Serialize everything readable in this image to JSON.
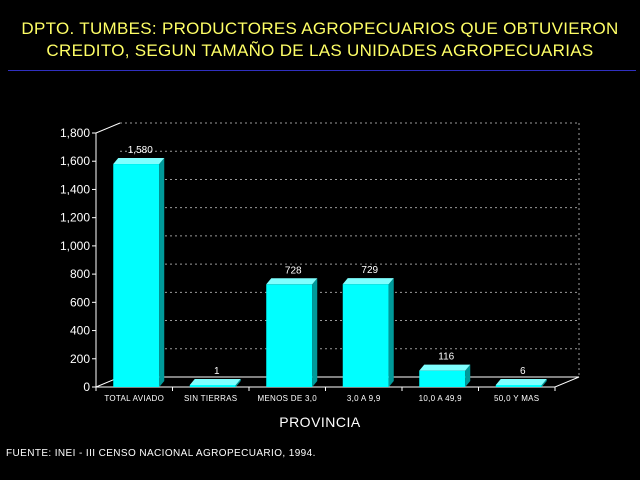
{
  "title_line1": "DPTO. TUMBES: PRODUCTORES AGROPECUARIOS QUE OBTUVIERON",
  "title_line2": "CREDITO, SEGUN TAMAÑO DE LAS UNIDADES AGROPECUARIAS",
  "source": "FUENTE: INEI - III CENSO NACIONAL AGROPECUARIO, 1994.",
  "colors": {
    "bar_front": "#00ffff",
    "bar_side": "#009a9a",
    "bar_top": "#7fffff",
    "title": "#ffff66",
    "grid": "#9a9a9a",
    "axis": "#ffffff"
  },
  "chart_data": {
    "type": "bar",
    "title": "DPTO. TUMBES: PRODUCTORES AGROPECUARIOS QUE OBTUVIERON CREDITO, SEGUN TAMAÑO DE LAS UNIDADES AGROPECUARIAS",
    "xlabel": "PROVINCIA",
    "ylabel": "",
    "categories": [
      "TOTAL AVIADO",
      "SIN TIERRAS",
      "MENOS DE 3,0",
      "3,0  A  9,9",
      "10,0  A  49,9",
      "50,0 Y MAS"
    ],
    "values": [
      1580,
      1,
      728,
      729,
      116,
      6
    ],
    "value_labels": [
      "1,580",
      "1",
      "728",
      "729",
      "116",
      "6"
    ],
    "ylim": [
      0,
      1800
    ],
    "yticks": [
      0,
      200,
      400,
      600,
      800,
      1000,
      1200,
      1400,
      1600,
      1800
    ],
    "ytick_labels": [
      "0",
      "200",
      "400",
      "600",
      "800",
      "1,000",
      "1,200",
      "1,400",
      "1,600",
      "1,800"
    ],
    "grid": true,
    "legend": "none",
    "style": "3d"
  }
}
